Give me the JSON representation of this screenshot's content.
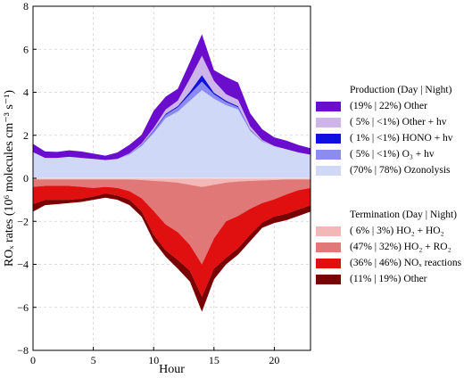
{
  "chart_data": {
    "type": "area",
    "xlabel": "Hour",
    "ylabel": "ROₓ rates (10⁶ molecules cm⁻³ s⁻¹)",
    "xlim": [
      0,
      23
    ],
    "ylim": [
      -8,
      8
    ],
    "xticks": [
      0,
      5,
      10,
      15,
      20
    ],
    "yticks": [
      -8,
      -6,
      -4,
      -2,
      0,
      2,
      4,
      6,
      8
    ],
    "grid": true,
    "legend_position": "right",
    "x": [
      0,
      1,
      2,
      3,
      4,
      5,
      6,
      7,
      8,
      9,
      10,
      11,
      12,
      13,
      14,
      15,
      16,
      17,
      18,
      19,
      20,
      21,
      22,
      23
    ],
    "production": {
      "title": "Production (Day | Night)",
      "series": [
        {
          "label": "(70% | 78%) Ozonolysis",
          "color": "#cfd8f7",
          "values": [
            1.22,
            0.95,
            0.95,
            1.0,
            0.95,
            0.9,
            0.85,
            0.9,
            1.1,
            1.5,
            2.1,
            2.8,
            3.1,
            3.6,
            4.1,
            3.7,
            3.4,
            3.2,
            2.2,
            1.7,
            1.5,
            1.35,
            1.2,
            1.1
          ]
        },
        {
          "label": "(  5% | <1%) O₃ + hv",
          "color": "#8c8cf0",
          "values": [
            0,
            0,
            0,
            0,
            0,
            0,
            0,
            0,
            0.02,
            0.05,
            0.1,
            0.15,
            0.2,
            0.3,
            0.4,
            0.2,
            0.15,
            0.1,
            0.05,
            0.02,
            0,
            0,
            0,
            0
          ]
        },
        {
          "label": "(  1% | <1%) HONO + hv",
          "color": "#1010e0",
          "values": [
            0,
            0,
            0,
            0,
            0,
            0,
            0,
            0,
            0.01,
            0.02,
            0.04,
            0.05,
            0.06,
            0.12,
            0.3,
            0.08,
            0.06,
            0.05,
            0.02,
            0.01,
            0,
            0,
            0,
            0
          ]
        },
        {
          "label": "(  5% | <1%) Other + hv",
          "color": "#cdb5ea",
          "values": [
            0,
            0,
            0,
            0,
            0,
            0,
            0,
            0,
            0.03,
            0.05,
            0.1,
            0.2,
            0.25,
            0.6,
            0.9,
            0.55,
            0.3,
            0.3,
            0.15,
            0.05,
            0,
            0,
            0,
            0
          ]
        },
        {
          "label": "(19% | 22%) Other",
          "color": "#6a0dcc",
          "values": [
            0.38,
            0.3,
            0.28,
            0.3,
            0.3,
            0.25,
            0.2,
            0.3,
            0.4,
            0.4,
            0.8,
            0.6,
            0.55,
            0.78,
            1.0,
            0.5,
            0.8,
            0.8,
            0.6,
            0.5,
            0.4,
            0.4,
            0.35,
            0.3
          ]
        }
      ]
    },
    "termination": {
      "title": "Termination (Day | Night)",
      "series": [
        {
          "label": "(  6% |   3%) HO₂ + HO₂",
          "color": "#f2b8b8",
          "values": [
            -0.05,
            -0.05,
            -0.05,
            -0.05,
            -0.05,
            -0.05,
            -0.05,
            -0.05,
            -0.05,
            -0.08,
            -0.12,
            -0.15,
            -0.2,
            -0.3,
            -0.4,
            -0.3,
            -0.2,
            -0.15,
            -0.12,
            -0.1,
            -0.08,
            -0.05,
            -0.05,
            -0.05
          ]
        },
        {
          "label": "(47% | 32%) HO₂ + RO₂",
          "color": "#e07878",
          "values": [
            -0.35,
            -0.3,
            -0.3,
            -0.3,
            -0.35,
            -0.4,
            -0.35,
            -0.4,
            -0.55,
            -0.85,
            -1.4,
            -2.0,
            -2.3,
            -2.8,
            -3.6,
            -2.5,
            -1.8,
            -1.6,
            -1.3,
            -1.05,
            -0.9,
            -0.7,
            -0.5,
            -0.4
          ]
        },
        {
          "label": "(36% | 46%) NOₓ reactions",
          "color": "#e01010",
          "values": [
            -0.8,
            -0.65,
            -0.65,
            -0.65,
            -0.55,
            -0.4,
            -0.3,
            -0.35,
            -0.4,
            -0.6,
            -1.1,
            -1.2,
            -1.3,
            -1.2,
            -1.5,
            -1.4,
            -1.7,
            -1.5,
            -1.2,
            -0.9,
            -0.8,
            -0.9,
            -0.9,
            -0.8
          ]
        },
        {
          "label": "(11% | 19%) Other",
          "color": "#7a0000",
          "values": [
            -0.35,
            -0.25,
            -0.2,
            -0.15,
            -0.15,
            -0.15,
            -0.2,
            -0.2,
            -0.25,
            -0.25,
            -0.3,
            -0.3,
            -0.4,
            -0.5,
            -0.7,
            -0.5,
            -0.3,
            -0.3,
            -0.3,
            -0.25,
            -0.3,
            -0.3,
            -0.3,
            -0.3
          ]
        }
      ]
    }
  }
}
